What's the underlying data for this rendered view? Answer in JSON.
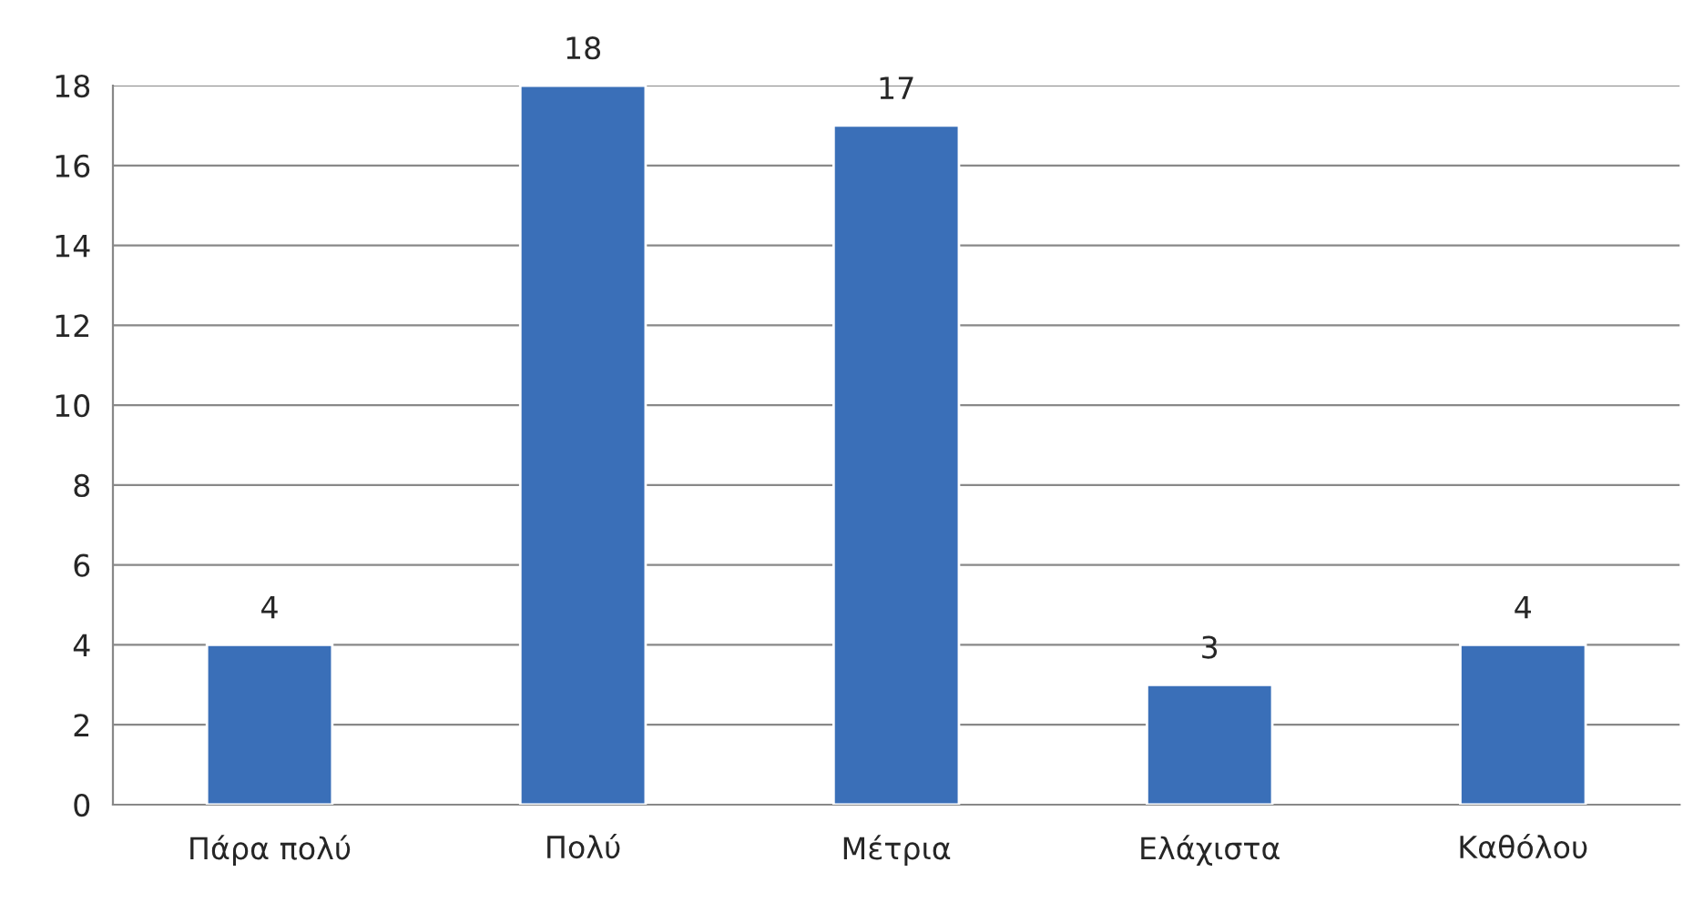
{
  "chart_data": {
    "type": "bar",
    "categories": [
      "Πάρα πολύ",
      "Πολύ",
      "Μέτρια",
      "Ελάχιστα",
      "Καθόλου"
    ],
    "values": [
      4,
      18,
      17,
      3,
      4
    ],
    "color": "#3a6fb8",
    "ylim": [
      0,
      18
    ],
    "yticks": [
      0,
      2,
      4,
      6,
      8,
      10,
      12,
      14,
      16,
      18
    ],
    "grid": "y",
    "data_labels": true
  }
}
